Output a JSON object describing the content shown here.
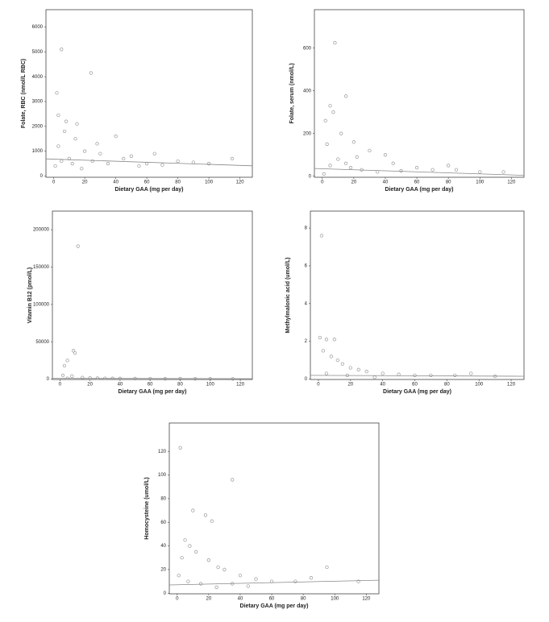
{
  "chart_data": [
    {
      "type": "scatter",
      "x_label": "Dietary GAA (mg per day)",
      "y_label": "Folate, RBC (nmol/L RBC)",
      "color": "#999999",
      "xlim": [
        -5,
        128
      ],
      "ylim": [
        -50,
        6700
      ],
      "xticks": [
        0,
        20,
        40,
        60,
        80,
        100,
        120
      ],
      "yticks": [
        0,
        1000,
        2000,
        3000,
        4000,
        5000,
        6000
      ],
      "x": [
        5,
        24,
        2,
        3,
        8,
        15,
        40,
        65,
        80,
        115,
        60,
        50,
        45,
        30,
        20,
        10,
        5,
        1,
        12,
        18,
        25,
        35,
        55,
        70,
        90,
        100,
        3,
        7,
        28,
        14
      ],
      "values": [
        5100,
        4150,
        3350,
        2450,
        2200,
        2100,
        1600,
        900,
        600,
        700,
        500,
        800,
        700,
        900,
        1000,
        700,
        600,
        400,
        500,
        300,
        600,
        500,
        400,
        450,
        550,
        500,
        1200,
        1800,
        1300,
        1500
      ],
      "trend": {
        "x": [
          -5,
          128
        ],
        "y": [
          690,
          410
        ]
      }
    },
    {
      "type": "scatter",
      "x_label": "Dietary GAA (mg per day)",
      "y_label": "Folate, serum (nmol/L)",
      "color": "#999999",
      "xlim": [
        -5,
        128
      ],
      "ylim": [
        -5,
        780
      ],
      "xticks": [
        0,
        20,
        40,
        60,
        80,
        100,
        120
      ],
      "yticks": [
        0,
        200,
        400,
        600
      ],
      "x": [
        8,
        15,
        5,
        7,
        2,
        12,
        20,
        3,
        30,
        40,
        45,
        60,
        80,
        85,
        100,
        115,
        10,
        5,
        18,
        25,
        35,
        1,
        50,
        70,
        15,
        22
      ],
      "values": [
        625,
        375,
        330,
        300,
        260,
        200,
        160,
        150,
        120,
        100,
        60,
        40,
        50,
        30,
        20,
        20,
        80,
        50,
        40,
        30,
        20,
        10,
        25,
        30,
        60,
        90
      ],
      "trend": {
        "x": [
          -5,
          128
        ],
        "y": [
          36,
          4
        ]
      }
    },
    {
      "type": "scatter",
      "x_label": "Dietary GAA (mg per day)",
      "y_label": "Vitamin B12 (pmol/L)",
      "color": "#999999",
      "xlim": [
        -5,
        128
      ],
      "ylim": [
        -500,
        225000
      ],
      "xticks": [
        0,
        20,
        40,
        60,
        80,
        100,
        120
      ],
      "yticks": [
        0,
        50000,
        100000,
        150000,
        200000
      ],
      "x": [
        12,
        9,
        10,
        5,
        3,
        2,
        8,
        15,
        20,
        30,
        40,
        50,
        60,
        70,
        80,
        90,
        100,
        115,
        5,
        25,
        35
      ],
      "values": [
        178000,
        38000,
        35000,
        25000,
        18000,
        5000,
        4000,
        2000,
        1500,
        1000,
        800,
        700,
        600,
        500,
        500,
        400,
        400,
        300,
        1000,
        1200,
        900
      ],
      "trend": {
        "x": [
          -5,
          128
        ],
        "y": [
          1000,
          600
        ]
      }
    },
    {
      "type": "scatter",
      "x_label": "Dietary GAA (mg per day)",
      "y_label": "Methylmalonic acid (umol/L)",
      "color": "#999999",
      "xlim": [
        -5,
        128
      ],
      "ylim": [
        -0.02,
        8.9
      ],
      "xticks": [
        0,
        20,
        40,
        60,
        80,
        100,
        120
      ],
      "yticks": [
        0,
        2,
        4,
        6,
        8
      ],
      "x": [
        2,
        1,
        5,
        10,
        3,
        8,
        12,
        15,
        20,
        25,
        30,
        40,
        50,
        60,
        70,
        85,
        95,
        110,
        5,
        18,
        35
      ],
      "values": [
        7.6,
        2.2,
        2.1,
        2.1,
        1.5,
        1.2,
        1.0,
        0.8,
        0.6,
        0.5,
        0.4,
        0.3,
        0.25,
        0.2,
        0.2,
        0.2,
        0.3,
        0.15,
        0.3,
        0.2,
        0.1
      ],
      "trend": {
        "x": [
          -5,
          128
        ],
        "y": [
          0.2,
          0.15
        ]
      }
    },
    {
      "type": "scatter",
      "x_label": "Dietary GAA (mg per day)",
      "y_label": "Homocysteine (umol/L)",
      "color": "#999999",
      "xlim": [
        -5,
        128
      ],
      "ylim": [
        -0.5,
        144
      ],
      "xticks": [
        0,
        20,
        40,
        60,
        80,
        100,
        120
      ],
      "yticks": [
        0,
        20,
        40,
        60,
        80,
        100,
        120
      ],
      "x": [
        2,
        35,
        10,
        18,
        22,
        5,
        8,
        12,
        3,
        20,
        26,
        30,
        40,
        50,
        60,
        75,
        95,
        85,
        115,
        7,
        15,
        25,
        35,
        45,
        1
      ],
      "values": [
        123,
        96,
        70,
        66,
        61,
        45,
        40,
        35,
        30,
        28,
        22,
        20,
        15,
        12,
        10,
        10,
        22,
        13,
        10,
        10,
        8,
        5,
        8,
        6,
        15
      ],
      "trend": {
        "x": [
          -5,
          128
        ],
        "y": [
          7,
          11
        ]
      }
    }
  ]
}
